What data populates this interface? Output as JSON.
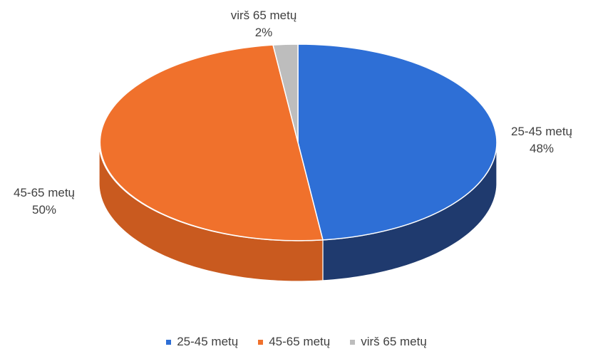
{
  "chart_data": {
    "type": "pie",
    "title": "",
    "categories": [
      "25-45 metų",
      "45-65 metų",
      "virš 65 metų"
    ],
    "values": [
      48,
      50,
      2
    ],
    "data_labels": [
      {
        "name": "25-45 metų",
        "value": "48%"
      },
      {
        "name": "45-65 metų",
        "value": "50%"
      },
      {
        "name": "virš 65 metų",
        "value": "2%"
      }
    ],
    "colors": [
      "#2e6fd6",
      "#f0712c",
      "#bdbdbd"
    ],
    "side_colors": [
      "#1f3a6e",
      "#c95a1f",
      "#8c8c8c"
    ],
    "legend_position": "bottom",
    "style": "3d-pie"
  }
}
